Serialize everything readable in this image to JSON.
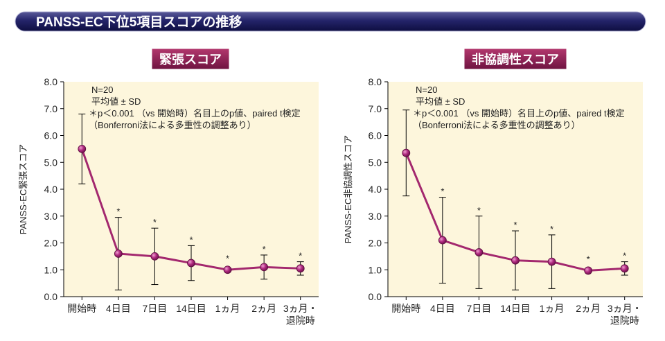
{
  "header": {
    "title": "PANSS-EC下位5項目スコアの推移"
  },
  "chart_data": [
    {
      "type": "line",
      "title": "緊張スコア",
      "ylabel": "PANSS-EC緊張スコア",
      "notes": [
        "N=20",
        "平均値 ± SD",
        "＊p＜0.001 （vs 開始時）名目上のp値、paired t検定",
        "（Bonferroni法による多重性の調整あり）"
      ],
      "categories": [
        "開始時",
        "4日目",
        "7日目",
        "14日目",
        "1ヵ月",
        "2ヵ月",
        "3ヵ月・\n退院時"
      ],
      "values": [
        5.5,
        1.6,
        1.5,
        1.25,
        1.0,
        1.1,
        1.05
      ],
      "errors": [
        1.3,
        1.35,
        1.05,
        0.65,
        0,
        0.45,
        0.25
      ],
      "significance": [
        null,
        "*",
        "*",
        "*",
        "*",
        "*",
        "*"
      ],
      "color": "#a3286e",
      "ylim": [
        0,
        8
      ],
      "yticks": [
        {
          "value": 0,
          "label": "0.0"
        },
        {
          "value": 1,
          "label": "1.0"
        },
        {
          "value": 2,
          "label": "2.0"
        },
        {
          "value": 3,
          "label": "3.0"
        },
        {
          "value": 4,
          "label": "4.0"
        },
        {
          "value": 5,
          "label": "5.0"
        },
        {
          "value": 6,
          "label": "6.0"
        },
        {
          "value": 7,
          "label": "7.0"
        },
        {
          "value": 8,
          "label": "8.0"
        }
      ]
    },
    {
      "type": "line",
      "title": "非協調性スコア",
      "ylabel": "PANSS-EC非協調性スコア",
      "notes": [
        "N=20",
        "平均値 ± SD",
        "＊p＜0.001 （vs 開始時）名目上のp値、paired t検定",
        "（Bonferroni法による多重性の調整あり）"
      ],
      "categories": [
        "開始時",
        "4日目",
        "7日目",
        "14日目",
        "1ヵ月",
        "2ヵ月",
        "3ヵ月・\n退院時"
      ],
      "values": [
        5.35,
        2.1,
        1.65,
        1.35,
        1.3,
        0.97,
        1.05
      ],
      "errors": [
        1.6,
        1.6,
        1.35,
        1.1,
        1.0,
        0,
        0.25
      ],
      "significance": [
        null,
        "*",
        "*",
        "*",
        "*",
        "*",
        "*"
      ],
      "color": "#a3286e",
      "ylim": [
        0,
        8
      ],
      "yticks": [
        {
          "value": 0,
          "label": "0.0"
        },
        {
          "value": 1,
          "label": "1.0"
        },
        {
          "value": 2,
          "label": "2.0"
        },
        {
          "value": 3,
          "label": "3.0"
        },
        {
          "value": 4,
          "label": "4.0"
        },
        {
          "value": 5,
          "label": "5.0"
        },
        {
          "value": 6,
          "label": "6.0"
        },
        {
          "value": 7,
          "label": "7.0"
        },
        {
          "value": 8,
          "label": "8.0"
        }
      ]
    }
  ]
}
